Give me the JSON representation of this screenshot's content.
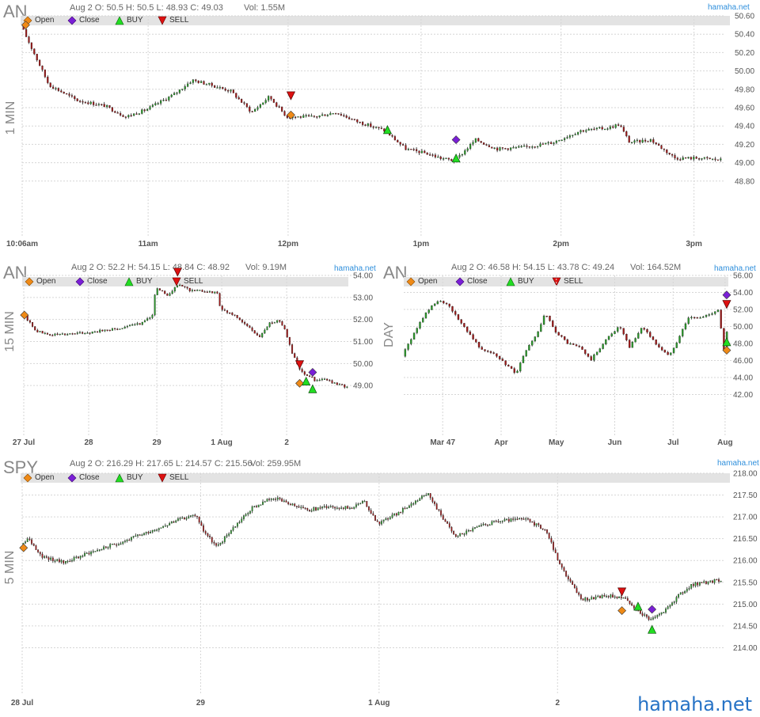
{
  "site": {
    "source": "hamaha.net",
    "watermark": "hamaha.net"
  },
  "legend": {
    "open": "Open",
    "close": "Close",
    "buy": "BUY",
    "sell": "SELL"
  },
  "colors": {
    "up": "#2a9a2a",
    "down": "#a01818",
    "open_marker": "#ef8a17",
    "close_marker": "#7a1fd6",
    "buy_marker": "#22dd22",
    "sell_marker": "#dd1111",
    "source": "#2f8fdc"
  },
  "chart_data": [
    {
      "id": "an_1min",
      "type": "candlestick",
      "ticker": "AN",
      "timeframe": "1 MIN",
      "ohlc_text": "Aug 2 O: 50.5 H: 50.5 L: 48.93 C: 49.03",
      "volume_text": "Vol: 1.55M",
      "ylim": [
        48.6,
        50.6
      ],
      "y_ticks": [
        "50.60",
        "50.40",
        "50.20",
        "50.00",
        "49.80",
        "49.60",
        "49.40",
        "49.20",
        "49.00",
        "48.80"
      ],
      "x_ticks": [
        "10:06am",
        "11am",
        "12pm",
        "1pm",
        "2pm",
        "3pm"
      ],
      "x_tick_pos": [
        0.0,
        0.18,
        0.38,
        0.57,
        0.77,
        0.96
      ],
      "path": [
        [
          0,
          50.5
        ],
        [
          0.04,
          49.85
        ],
        [
          0.08,
          49.68
        ],
        [
          0.12,
          49.62
        ],
        [
          0.15,
          49.5
        ],
        [
          0.18,
          49.58
        ],
        [
          0.22,
          49.75
        ],
        [
          0.245,
          49.9
        ],
        [
          0.27,
          49.85
        ],
        [
          0.3,
          49.78
        ],
        [
          0.33,
          49.55
        ],
        [
          0.355,
          49.72
        ],
        [
          0.38,
          49.5
        ],
        [
          0.42,
          49.5
        ],
        [
          0.45,
          49.55
        ],
        [
          0.48,
          49.45
        ],
        [
          0.52,
          49.35
        ],
        [
          0.55,
          49.15
        ],
        [
          0.58,
          49.1
        ],
        [
          0.6,
          49.05
        ],
        [
          0.62,
          49.02
        ],
        [
          0.65,
          49.25
        ],
        [
          0.68,
          49.15
        ],
        [
          0.72,
          49.17
        ],
        [
          0.76,
          49.22
        ],
        [
          0.8,
          49.35
        ],
        [
          0.84,
          49.38
        ],
        [
          0.855,
          49.42
        ],
        [
          0.87,
          49.22
        ],
        [
          0.9,
          49.25
        ],
        [
          0.935,
          49.05
        ],
        [
          0.97,
          49.05
        ],
        [
          1.0,
          49.03
        ]
      ],
      "markers": [
        {
          "kind": "open",
          "x": 0.005,
          "price": 50.5
        },
        {
          "kind": "open",
          "x": 0.384,
          "price": 49.52
        },
        {
          "kind": "sell",
          "x": 0.384,
          "price": 49.73
        },
        {
          "kind": "buy",
          "x": 0.522,
          "price": 49.36
        },
        {
          "kind": "close",
          "x": 0.62,
          "price": 49.25
        },
        {
          "kind": "buy",
          "x": 0.62,
          "price": 49.05
        }
      ]
    },
    {
      "id": "an_15min",
      "type": "candlestick",
      "ticker": "AN",
      "timeframe": "15 MIN",
      "ohlc_text": "Aug 2 O: 52.2 H: 54.15 L: 48.84 C: 48.92",
      "volume_text": "Vol: 9.19M",
      "ylim": [
        48.0,
        54.0
      ],
      "y_ticks": [
        "54.00",
        "53.00",
        "52.00",
        "51.00",
        "50.00",
        "49.00"
      ],
      "x_ticks": [
        "27 Jul",
        "28",
        "29",
        "1 Aug",
        "2"
      ],
      "x_tick_pos": [
        0.0,
        0.2,
        0.41,
        0.61,
        0.81
      ],
      "path": [
        [
          0,
          52.3
        ],
        [
          0.04,
          51.5
        ],
        [
          0.08,
          51.3
        ],
        [
          0.14,
          51.35
        ],
        [
          0.2,
          51.4
        ],
        [
          0.25,
          51.5
        ],
        [
          0.3,
          51.6
        ],
        [
          0.36,
          51.8
        ],
        [
          0.4,
          52.2
        ],
        [
          0.41,
          53.4
        ],
        [
          0.45,
          53.1
        ],
        [
          0.48,
          53.6
        ],
        [
          0.52,
          53.3
        ],
        [
          0.56,
          53.3
        ],
        [
          0.6,
          53.2
        ],
        [
          0.61,
          52.5
        ],
        [
          0.66,
          52.1
        ],
        [
          0.7,
          51.6
        ],
        [
          0.73,
          51.2
        ],
        [
          0.76,
          51.8
        ],
        [
          0.79,
          52.0
        ],
        [
          0.81,
          51.5
        ],
        [
          0.83,
          50.5
        ],
        [
          0.86,
          49.6
        ],
        [
          0.89,
          49.4
        ],
        [
          0.9,
          49.2
        ],
        [
          0.93,
          49.3
        ],
        [
          0.96,
          49.1
        ],
        [
          1.0,
          48.92
        ]
      ],
      "markers": [
        {
          "kind": "open",
          "x": 0.002,
          "price": 52.2
        },
        {
          "kind": "sell",
          "x": 0.474,
          "price": 54.15
        },
        {
          "kind": "sell",
          "x": 0.85,
          "price": 49.95
        },
        {
          "kind": "open",
          "x": 0.85,
          "price": 49.1
        },
        {
          "kind": "buy",
          "x": 0.87,
          "price": 49.2
        },
        {
          "kind": "close",
          "x": 0.89,
          "price": 49.6
        },
        {
          "kind": "buy",
          "x": 0.89,
          "price": 48.85
        }
      ]
    },
    {
      "id": "an_day",
      "type": "candlestick",
      "ticker": "AN",
      "timeframe": "DAY",
      "ohlc_text": "Aug 2 O: 46.58 H: 54.15 L: 43.78 C: 49.24",
      "volume_text": "Vol: 164.52M",
      "ylim": [
        40.0,
        56.0
      ],
      "y_ticks": [
        "56.00",
        "54.00",
        "52.00",
        "50.00",
        "48.00",
        "46.00",
        "44.00",
        "42.00"
      ],
      "x_ticks": [
        "Mar 47",
        "Apr",
        "May",
        "Jun",
        "Jul",
        "Aug"
      ],
      "x_tick_pos": [
        0.12,
        0.3,
        0.47,
        0.65,
        0.83,
        0.99
      ],
      "path": [
        [
          0,
          46.5
        ],
        [
          0.04,
          49.5
        ],
        [
          0.08,
          52.0
        ],
        [
          0.11,
          53.0
        ],
        [
          0.14,
          52.5
        ],
        [
          0.17,
          51.0
        ],
        [
          0.2,
          49.5
        ],
        [
          0.24,
          47.5
        ],
        [
          0.28,
          46.8
        ],
        [
          0.32,
          45.5
        ],
        [
          0.35,
          44.5
        ],
        [
          0.38,
          47.0
        ],
        [
          0.42,
          49.5
        ],
        [
          0.44,
          51.5
        ],
        [
          0.47,
          49.5
        ],
        [
          0.51,
          48.0
        ],
        [
          0.55,
          47.5
        ],
        [
          0.58,
          46.0
        ],
        [
          0.61,
          47.5
        ],
        [
          0.64,
          49.0
        ],
        [
          0.67,
          50.0
        ],
        [
          0.7,
          47.5
        ],
        [
          0.74,
          50.0
        ],
        [
          0.78,
          48.0
        ],
        [
          0.82,
          46.5
        ],
        [
          0.85,
          48.5
        ],
        [
          0.88,
          51.0
        ],
        [
          0.92,
          51.0
        ],
        [
          0.95,
          51.5
        ],
        [
          0.975,
          52.0
        ],
        [
          0.99,
          47.0
        ],
        [
          1.0,
          49.24
        ]
      ],
      "markers": [
        {
          "kind": "close",
          "x": 0.995,
          "price": 53.7
        },
        {
          "kind": "sell",
          "x": 0.995,
          "price": 52.6
        },
        {
          "kind": "buy",
          "x": 0.995,
          "price": 48.2
        },
        {
          "kind": "open",
          "x": 0.995,
          "price": 47.2
        }
      ]
    },
    {
      "id": "spy_5min",
      "type": "candlestick",
      "ticker": "SPY",
      "timeframe": "5 MIN",
      "ohlc_text": "Aug 2 O: 216.29 H: 217.65 L: 214.57 C: 215.56",
      "volume_text": "Vol: 259.95M",
      "ylim": [
        213.5,
        218.0
      ],
      "y_ticks": [
        "218.00",
        "217.50",
        "217.00",
        "216.50",
        "216.00",
        "215.50",
        "215.00",
        "214.50",
        "214.00"
      ],
      "x_ticks": [
        "28 Jul",
        "29",
        "1 Aug",
        "2"
      ],
      "x_tick_pos": [
        0.0,
        0.255,
        0.51,
        0.765
      ],
      "path": [
        [
          0,
          216.3
        ],
        [
          0.01,
          216.5
        ],
        [
          0.03,
          216.1
        ],
        [
          0.06,
          215.95
        ],
        [
          0.1,
          216.2
        ],
        [
          0.14,
          216.4
        ],
        [
          0.18,
          216.65
        ],
        [
          0.22,
          216.9
        ],
        [
          0.25,
          217.05
        ],
        [
          0.26,
          216.7
        ],
        [
          0.28,
          216.3
        ],
        [
          0.3,
          216.7
        ],
        [
          0.33,
          217.2
        ],
        [
          0.36,
          217.45
        ],
        [
          0.38,
          217.3
        ],
        [
          0.41,
          217.15
        ],
        [
          0.44,
          217.25
        ],
        [
          0.47,
          217.2
        ],
        [
          0.49,
          217.35
        ],
        [
          0.51,
          216.85
        ],
        [
          0.54,
          217.1
        ],
        [
          0.58,
          217.55
        ],
        [
          0.6,
          217.05
        ],
        [
          0.62,
          216.55
        ],
        [
          0.65,
          216.75
        ],
        [
          0.68,
          216.9
        ],
        [
          0.72,
          216.95
        ],
        [
          0.75,
          216.7
        ],
        [
          0.77,
          215.9
        ],
        [
          0.8,
          215.1
        ],
        [
          0.84,
          215.2
        ],
        [
          0.86,
          215.15
        ],
        [
          0.88,
          214.85
        ],
        [
          0.9,
          214.65
        ],
        [
          0.92,
          214.85
        ],
        [
          0.94,
          215.2
        ],
        [
          0.96,
          215.45
        ],
        [
          0.98,
          215.5
        ],
        [
          1.0,
          215.56
        ]
      ],
      "markers": [
        {
          "kind": "open",
          "x": 0.002,
          "price": 216.29
        },
        {
          "kind": "sell",
          "x": 0.857,
          "price": 215.28
        },
        {
          "kind": "open",
          "x": 0.857,
          "price": 214.85
        },
        {
          "kind": "buy",
          "x": 0.88,
          "price": 214.95
        },
        {
          "kind": "close",
          "x": 0.9,
          "price": 214.88
        },
        {
          "kind": "buy",
          "x": 0.9,
          "price": 214.42
        }
      ]
    }
  ]
}
